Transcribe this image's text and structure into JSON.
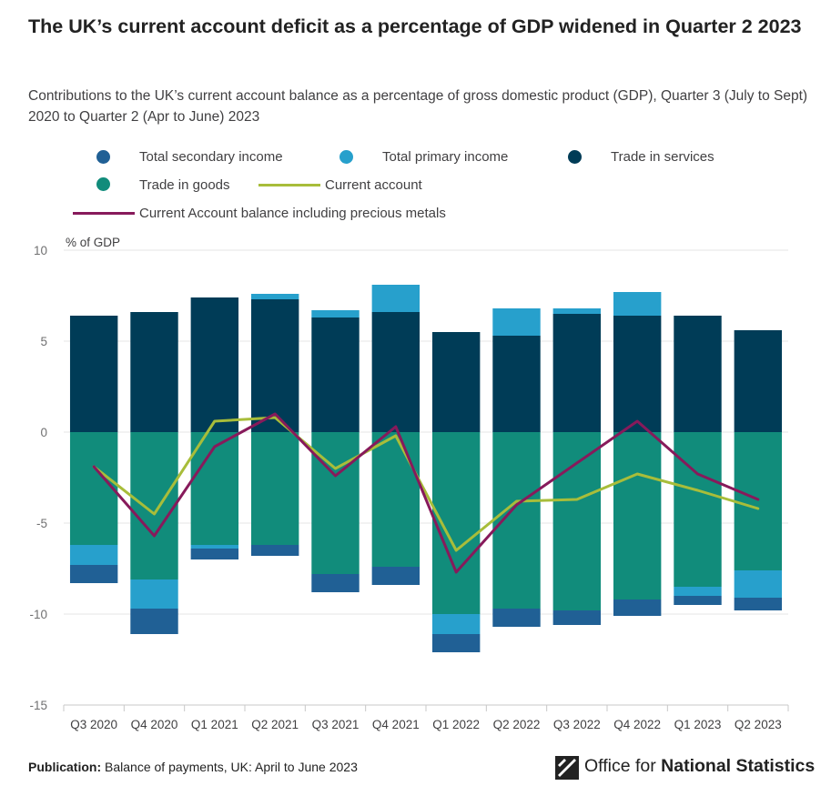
{
  "title": "The UK’s current account deficit as a percentage of GDP widened in Quarter 2 2023",
  "subtitle": "Contributions to the UK’s current account balance as a percentage of gross domestic product (GDP), Quarter 3 (July to Sept) 2020 to Quarter 2 (Apr to June) 2023",
  "legend": {
    "secondary": "Total secondary income",
    "primary": "Total primary income",
    "services": "Trade in services",
    "goods": "Trade in goods",
    "current": "Current account",
    "precious": "Current Account balance including precious metals"
  },
  "footer": {
    "label": "Publication:",
    "text": "Balance of payments, UK: April to June 2023"
  },
  "logo": {
    "prefix": "Office for ",
    "bold": "National Statistics"
  },
  "colors": {
    "secondary": "#206095",
    "primary": "#27A0CC",
    "services": "#003C57",
    "goods": "#118C7B",
    "current": "#A8BD3A",
    "precious": "#871A5B"
  },
  "chart_data": {
    "type": "bar",
    "stacked": true,
    "ylabel": "% of GDP",
    "ylim": [
      -15,
      10
    ],
    "yticks": [
      10,
      5,
      0,
      -5,
      -10,
      -15
    ],
    "grid": true,
    "legend_position": "top",
    "categories": [
      "Q3 2020",
      "Q4 2020",
      "Q1 2021",
      "Q2 2021",
      "Q3 2021",
      "Q4 2021",
      "Q1 2022",
      "Q2 2022",
      "Q3 2022",
      "Q4 2022",
      "Q1 2023",
      "Q2 2023"
    ],
    "series": [
      {
        "name": "Trade in goods",
        "key": "goods",
        "values": [
          -6.2,
          -8.1,
          -6.2,
          -6.2,
          -7.8,
          -7.4,
          -10.0,
          -9.7,
          -9.8,
          -9.2,
          -8.5,
          -7.6
        ]
      },
      {
        "name": "Trade in services",
        "key": "services",
        "values": [
          6.4,
          6.6,
          7.4,
          7.3,
          6.3,
          6.6,
          5.5,
          5.3,
          6.5,
          6.4,
          6.4,
          5.6
        ]
      },
      {
        "name": "Total primary income",
        "key": "primary",
        "values": [
          -1.1,
          -1.6,
          -0.2,
          0.3,
          0.4,
          1.5,
          -1.1,
          1.5,
          0.3,
          1.3,
          -0.5,
          -1.5
        ]
      },
      {
        "name": "Total secondary income",
        "key": "secondary",
        "values": [
          -1.0,
          -1.4,
          -0.6,
          -0.6,
          -1.0,
          -1.0,
          -1.0,
          -1.0,
          -0.8,
          -0.9,
          -0.5,
          -0.7
        ]
      },
      {
        "name": "Current account",
        "key": "current",
        "type": "line",
        "values": [
          -1.9,
          -4.5,
          0.6,
          0.8,
          -2.0,
          -0.2,
          -6.5,
          -3.8,
          -3.7,
          -2.3,
          -3.2,
          -4.2
        ]
      },
      {
        "name": "Current Account balance including precious metals",
        "key": "precious",
        "type": "line",
        "values": [
          -1.9,
          -5.7,
          -0.8,
          1.0,
          -2.4,
          0.3,
          -7.7,
          -4.0,
          -1.7,
          0.6,
          -2.3,
          -3.7
        ]
      }
    ]
  }
}
